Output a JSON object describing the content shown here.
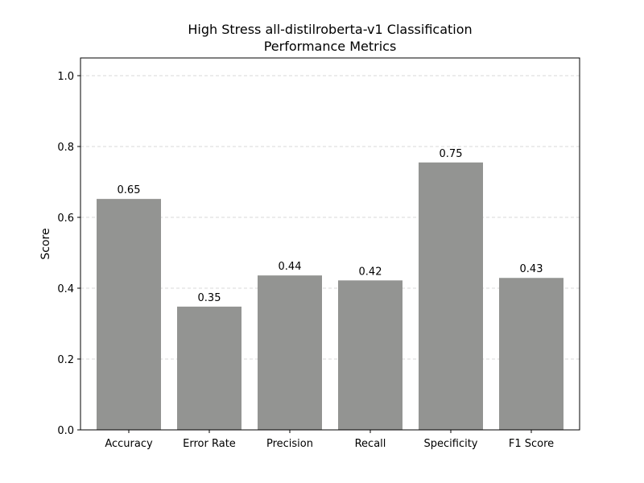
{
  "chart_data": {
    "type": "bar",
    "title_line1": "High Stress all-distilroberta-v1 Classification",
    "title_line2": "Performance Metrics",
    "xlabel": "",
    "ylabel": "Score",
    "categories": [
      "Accuracy",
      "Error Rate",
      "Precision",
      "Recall",
      "Specificity",
      "F1 Score"
    ],
    "values": [
      0.652,
      0.348,
      0.436,
      0.422,
      0.755,
      0.429
    ],
    "value_labels": [
      "0.65",
      "0.35",
      "0.44",
      "0.42",
      "0.75",
      "0.43"
    ],
    "ylim": [
      0,
      1.05
    ],
    "yticks": [
      0.0,
      0.2,
      0.4,
      0.6,
      0.8,
      1.0
    ],
    "ytick_labels": [
      "0.0",
      "0.2",
      "0.4",
      "0.6",
      "0.8",
      "1.0"
    ],
    "grid": "y-dashed",
    "bar_color": "#939492"
  }
}
